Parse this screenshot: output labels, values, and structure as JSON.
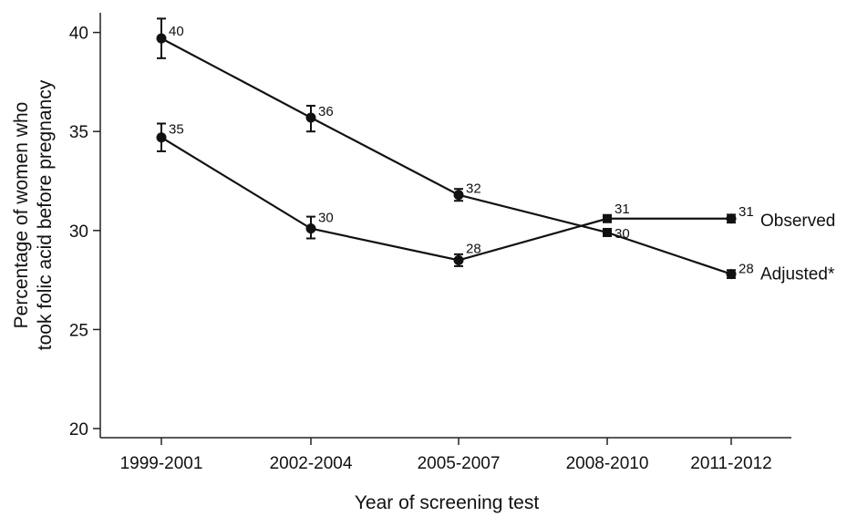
{
  "chart_data": {
    "type": "line",
    "xlabel": "Year of screening test",
    "ylabel_line1": "Percentage of women who",
    "ylabel_line2": "took folic acid before pregnancy",
    "categories": [
      "1999-2001",
      "2002-2004",
      "2005-2007",
      "2008-2010",
      "2011-2012"
    ],
    "ylim": [
      20,
      40.9
    ],
    "yticks": [
      20,
      25,
      30,
      35,
      40
    ],
    "grid": false,
    "series": [
      {
        "name": "Adjusted*",
        "values": [
          39.7,
          35.7,
          31.8,
          29.9,
          27.8
        ],
        "lower": [
          38.7,
          35.0,
          31.5,
          29.8,
          27.6
        ],
        "upper": [
          40.7,
          36.3,
          32.1,
          30.0,
          28.0
        ],
        "labels": [
          "40",
          "36",
          "32",
          "30",
          "28"
        ]
      },
      {
        "name": "Observed",
        "values": [
          34.7,
          30.1,
          28.5,
          30.6,
          30.6
        ],
        "lower": [
          34.0,
          29.6,
          28.2,
          30.5,
          30.4
        ],
        "upper": [
          35.4,
          30.7,
          28.8,
          30.7,
          30.8
        ],
        "labels": [
          "35",
          "30",
          "28",
          "31",
          "31"
        ]
      }
    ],
    "colors": {
      "line": "#111111",
      "axis": "#222222"
    }
  }
}
